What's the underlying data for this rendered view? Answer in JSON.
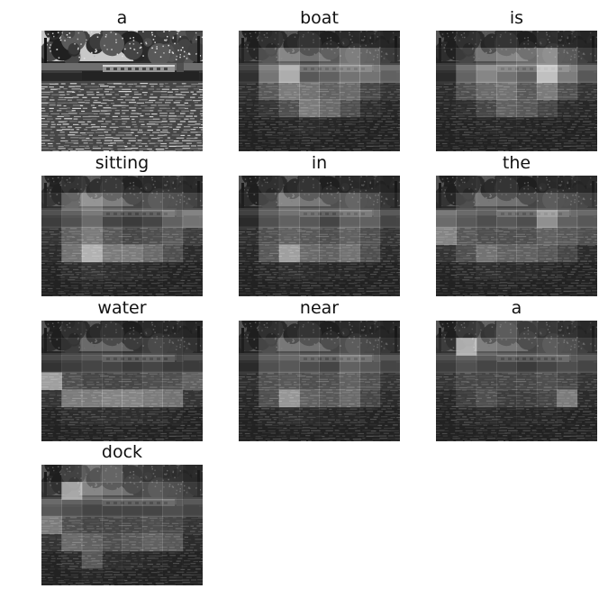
{
  "figure": {
    "panels": [
      {
        "word": "a",
        "kind": "photo"
      },
      {
        "word": "boat",
        "kind": "attention",
        "grid": [
          [
            0.1,
            0.1,
            0.12,
            0.12,
            0.1,
            0.12,
            0.1,
            0.08
          ],
          [
            0.15,
            0.35,
            0.45,
            0.3,
            0.4,
            0.55,
            0.4,
            0.2
          ],
          [
            0.18,
            0.55,
            0.85,
            0.4,
            0.45,
            0.55,
            0.55,
            0.45
          ],
          [
            0.12,
            0.35,
            0.55,
            0.5,
            0.4,
            0.45,
            0.25,
            0.15
          ],
          [
            0.08,
            0.15,
            0.3,
            0.55,
            0.45,
            0.3,
            0.12,
            0.08
          ],
          [
            0.05,
            0.06,
            0.08,
            0.1,
            0.08,
            0.06,
            0.05,
            0.05
          ],
          [
            0.05,
            0.05,
            0.06,
            0.06,
            0.05,
            0.05,
            0.05,
            0.05
          ]
        ]
      },
      {
        "word": "is",
        "kind": "attention",
        "grid": [
          [
            0.1,
            0.1,
            0.12,
            0.12,
            0.1,
            0.15,
            0.1,
            0.08
          ],
          [
            0.12,
            0.25,
            0.35,
            0.45,
            0.5,
            0.65,
            0.35,
            0.2
          ],
          [
            0.15,
            0.45,
            0.65,
            0.55,
            0.45,
            0.95,
            0.6,
            0.4
          ],
          [
            0.1,
            0.3,
            0.45,
            0.5,
            0.35,
            0.55,
            0.3,
            0.15
          ],
          [
            0.08,
            0.12,
            0.25,
            0.4,
            0.35,
            0.25,
            0.1,
            0.08
          ],
          [
            0.05,
            0.06,
            0.08,
            0.08,
            0.07,
            0.06,
            0.05,
            0.05
          ],
          [
            0.05,
            0.05,
            0.05,
            0.05,
            0.05,
            0.05,
            0.05,
            0.05
          ]
        ]
      },
      {
        "word": "sitting",
        "kind": "attention",
        "grid": [
          [
            0.12,
            0.12,
            0.15,
            0.15,
            0.12,
            0.12,
            0.15,
            0.1
          ],
          [
            0.18,
            0.45,
            0.55,
            0.4,
            0.3,
            0.35,
            0.3,
            0.25
          ],
          [
            0.25,
            0.35,
            0.5,
            0.3,
            0.25,
            0.3,
            0.45,
            0.55
          ],
          [
            0.15,
            0.4,
            0.55,
            0.35,
            0.25,
            0.3,
            0.35,
            0.2
          ],
          [
            0.1,
            0.5,
            0.85,
            0.55,
            0.55,
            0.45,
            0.3,
            0.1
          ],
          [
            0.06,
            0.1,
            0.15,
            0.12,
            0.1,
            0.08,
            0.06,
            0.05
          ],
          [
            0.05,
            0.06,
            0.08,
            0.06,
            0.06,
            0.05,
            0.05,
            0.05
          ]
        ]
      },
      {
        "word": "in",
        "kind": "attention",
        "grid": [
          [
            0.1,
            0.1,
            0.12,
            0.12,
            0.1,
            0.12,
            0.1,
            0.08
          ],
          [
            0.12,
            0.3,
            0.45,
            0.35,
            0.35,
            0.4,
            0.3,
            0.15
          ],
          [
            0.15,
            0.35,
            0.45,
            0.4,
            0.3,
            0.45,
            0.45,
            0.3
          ],
          [
            0.12,
            0.3,
            0.4,
            0.35,
            0.3,
            0.4,
            0.3,
            0.15
          ],
          [
            0.08,
            0.35,
            0.75,
            0.45,
            0.4,
            0.5,
            0.3,
            0.1
          ],
          [
            0.05,
            0.08,
            0.12,
            0.1,
            0.08,
            0.08,
            0.06,
            0.05
          ],
          [
            0.05,
            0.05,
            0.06,
            0.05,
            0.05,
            0.05,
            0.05,
            0.05
          ]
        ]
      },
      {
        "word": "the",
        "kind": "attention",
        "grid": [
          [
            0.1,
            0.1,
            0.12,
            0.12,
            0.1,
            0.12,
            0.1,
            0.1
          ],
          [
            0.15,
            0.3,
            0.35,
            0.3,
            0.3,
            0.35,
            0.3,
            0.25
          ],
          [
            0.5,
            0.4,
            0.35,
            0.4,
            0.35,
            0.7,
            0.45,
            0.4
          ],
          [
            0.6,
            0.35,
            0.3,
            0.3,
            0.3,
            0.4,
            0.35,
            0.3
          ],
          [
            0.15,
            0.3,
            0.5,
            0.4,
            0.4,
            0.35,
            0.25,
            0.1
          ],
          [
            0.06,
            0.08,
            0.12,
            0.1,
            0.1,
            0.08,
            0.06,
            0.05
          ],
          [
            0.05,
            0.05,
            0.06,
            0.06,
            0.05,
            0.05,
            0.05,
            0.05
          ]
        ]
      },
      {
        "word": "water",
        "kind": "attention",
        "grid": [
          [
            0.1,
            0.1,
            0.12,
            0.12,
            0.1,
            0.12,
            0.1,
            0.08
          ],
          [
            0.12,
            0.2,
            0.25,
            0.25,
            0.2,
            0.25,
            0.2,
            0.15
          ],
          [
            0.2,
            0.25,
            0.3,
            0.3,
            0.25,
            0.3,
            0.25,
            0.25
          ],
          [
            0.75,
            0.3,
            0.25,
            0.25,
            0.25,
            0.3,
            0.3,
            0.4
          ],
          [
            0.15,
            0.55,
            0.55,
            0.6,
            0.6,
            0.55,
            0.5,
            0.15
          ],
          [
            0.06,
            0.1,
            0.12,
            0.12,
            0.12,
            0.1,
            0.08,
            0.05
          ],
          [
            0.05,
            0.06,
            0.06,
            0.06,
            0.06,
            0.06,
            0.05,
            0.05
          ]
        ]
      },
      {
        "word": "near",
        "kind": "attention",
        "grid": [
          [
            0.1,
            0.1,
            0.12,
            0.12,
            0.1,
            0.12,
            0.1,
            0.08
          ],
          [
            0.12,
            0.3,
            0.35,
            0.3,
            0.3,
            0.35,
            0.25,
            0.15
          ],
          [
            0.15,
            0.35,
            0.4,
            0.35,
            0.3,
            0.45,
            0.4,
            0.3
          ],
          [
            0.12,
            0.3,
            0.35,
            0.3,
            0.3,
            0.4,
            0.3,
            0.15
          ],
          [
            0.08,
            0.3,
            0.7,
            0.4,
            0.35,
            0.45,
            0.25,
            0.1
          ],
          [
            0.05,
            0.08,
            0.12,
            0.1,
            0.08,
            0.08,
            0.06,
            0.05
          ],
          [
            0.05,
            0.05,
            0.06,
            0.05,
            0.05,
            0.05,
            0.05,
            0.05
          ]
        ]
      },
      {
        "word": "a",
        "kind": "attention",
        "grid": [
          [
            0.1,
            0.15,
            0.2,
            0.35,
            0.25,
            0.2,
            0.15,
            0.1
          ],
          [
            0.2,
            0.85,
            0.4,
            0.35,
            0.3,
            0.35,
            0.3,
            0.2
          ],
          [
            0.25,
            0.35,
            0.3,
            0.3,
            0.25,
            0.3,
            0.35,
            0.3
          ],
          [
            0.15,
            0.25,
            0.25,
            0.25,
            0.25,
            0.3,
            0.25,
            0.15
          ],
          [
            0.08,
            0.2,
            0.3,
            0.2,
            0.2,
            0.25,
            0.55,
            0.1
          ],
          [
            0.05,
            0.08,
            0.1,
            0.08,
            0.08,
            0.08,
            0.06,
            0.05
          ],
          [
            0.05,
            0.05,
            0.06,
            0.05,
            0.05,
            0.05,
            0.05,
            0.05
          ]
        ]
      },
      {
        "word": "dock",
        "kind": "attention",
        "grid": [
          [
            0.1,
            0.2,
            0.35,
            0.4,
            0.25,
            0.2,
            0.15,
            0.1
          ],
          [
            0.2,
            0.8,
            0.45,
            0.35,
            0.3,
            0.35,
            0.3,
            0.2
          ],
          [
            0.4,
            0.35,
            0.3,
            0.3,
            0.3,
            0.3,
            0.35,
            0.3
          ],
          [
            0.55,
            0.3,
            0.25,
            0.25,
            0.25,
            0.3,
            0.25,
            0.15
          ],
          [
            0.15,
            0.45,
            0.4,
            0.3,
            0.35,
            0.4,
            0.35,
            0.1
          ],
          [
            0.06,
            0.1,
            0.35,
            0.12,
            0.1,
            0.08,
            0.06,
            0.05
          ],
          [
            0.05,
            0.06,
            0.08,
            0.06,
            0.06,
            0.05,
            0.05,
            0.05
          ]
        ]
      }
    ]
  }
}
